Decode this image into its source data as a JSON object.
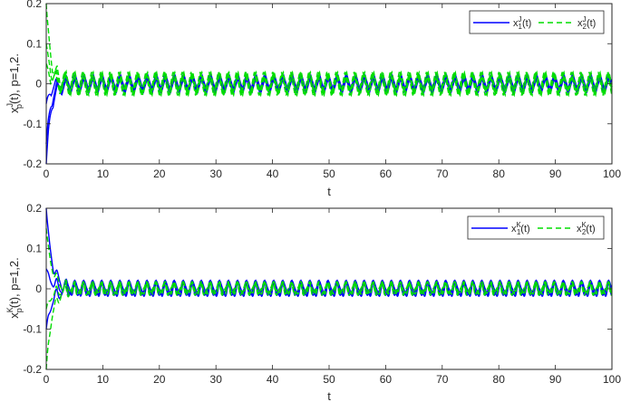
{
  "chart_data": [
    {
      "type": "line",
      "title": "",
      "xlabel": "t",
      "ylabel": "x_p^J(t), p=1,2.",
      "xlim": [
        0,
        100
      ],
      "ylim": [
        -0.2,
        0.2
      ],
      "xticks": [
        "0",
        "10",
        "20",
        "30",
        "40",
        "50",
        "60",
        "70",
        "80",
        "90",
        "100"
      ],
      "yticks": [
        "-0.2",
        "-0.1",
        "0",
        "0.1",
        "0.2"
      ],
      "grid": false,
      "legend_position": "upper-right",
      "legend_orientation": "horizontal",
      "series": [
        {
          "name": "x_1^J(t)",
          "color": "#0000ff",
          "style": "solid",
          "initial_values": [
            -0.2,
            -0.15,
            -0.05
          ],
          "settle_time": 2,
          "steady_state": {
            "amplitude": 0.02,
            "period": 1.6,
            "mean": 0.0
          }
        },
        {
          "name": "x_2^J(t)",
          "color": "#00dd00",
          "style": "dashed",
          "initial_values": [
            0.2,
            0.1,
            0.05
          ],
          "settle_time": 2,
          "steady_state": {
            "amplitude": 0.03,
            "period": 1.6,
            "mean": 0.0
          }
        }
      ]
    },
    {
      "type": "line",
      "title": "",
      "xlabel": "t",
      "ylabel": "x_p^K(t), p=1,2.",
      "xlim": [
        0,
        100
      ],
      "ylim": [
        -0.2,
        0.2
      ],
      "xticks": [
        "0",
        "10",
        "20",
        "30",
        "40",
        "50",
        "60",
        "70",
        "80",
        "90",
        "100"
      ],
      "yticks": [
        "-0.2",
        "-0.1",
        "0",
        "0.1",
        "0.2"
      ],
      "grid": false,
      "legend_position": "upper-right",
      "legend_orientation": "horizontal",
      "series": [
        {
          "name": "x_1^K(t)",
          "color": "#0000ff",
          "style": "solid",
          "initial_values": [
            0.2,
            0.05,
            -0.1
          ],
          "settle_time": 2.5,
          "steady_state": {
            "amplitude": 0.017,
            "period": 1.6,
            "mean": 0.0
          }
        },
        {
          "name": "x_2^K(t)",
          "color": "#00dd00",
          "style": "dashed",
          "initial_values": [
            0.15,
            -0.05,
            -0.2
          ],
          "settle_time": 2.5,
          "steady_state": {
            "amplitude": 0.014,
            "period": 1.6,
            "mean": 0.0
          }
        }
      ]
    }
  ],
  "plots": {
    "top": {
      "xlabel": "t",
      "ylabel_base": "x",
      "ylabel_sup": "J",
      "ylabel_sub": "p",
      "ylabel_rest": "(t), p=1,2.",
      "legend": [
        {
          "base": "x",
          "sup": "J",
          "sub": "1",
          "rest": "(t)"
        },
        {
          "base": "x",
          "sup": "J",
          "sub": "2",
          "rest": "(t)"
        }
      ]
    },
    "bottom": {
      "xlabel": "t",
      "ylabel_base": "x",
      "ylabel_sup": "K",
      "ylabel_sub": "p",
      "ylabel_rest": "(t), p=1,2.",
      "legend": [
        {
          "base": "x",
          "sup": "K",
          "sub": "1",
          "rest": "(t)"
        },
        {
          "base": "x",
          "sup": "K",
          "sub": "2",
          "rest": "(t)"
        }
      ]
    }
  }
}
